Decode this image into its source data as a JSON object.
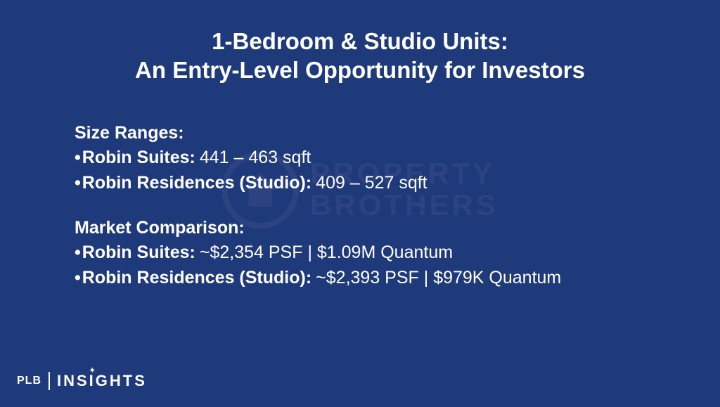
{
  "background_color": "#1f3a7a",
  "text_color": "#ffffff",
  "title": {
    "line1": "1-Bedroom & Studio Units:",
    "line2": "An Entry-Level Opportunity for Investors",
    "fontsize": 33
  },
  "body_fontsize": 25,
  "sections": [
    {
      "heading": "Size Ranges:",
      "items": [
        {
          "label": "Robin Suites:",
          "value": "441 – 463 sqft"
        },
        {
          "label": "Robin Residences (Studio):",
          "value": "409 – 527 sqft"
        }
      ]
    },
    {
      "heading": "Market Comparison:",
      "items": [
        {
          "label": "Robin Suites:",
          "value": "~$2,354 PSF | $1.09M Quantum"
        },
        {
          "label": "Robin Residences (Studio):",
          "value": "~$2,393 PSF | $979K Quantum"
        }
      ]
    }
  ],
  "logo": {
    "plb": "PLB",
    "plb_fontsize": 16,
    "insights": "INSIGHTS",
    "insights_fontsize": 22,
    "sparkle": "✦"
  },
  "watermark": {
    "line1": "PROPERTY",
    "line2": "BROTHERS"
  }
}
